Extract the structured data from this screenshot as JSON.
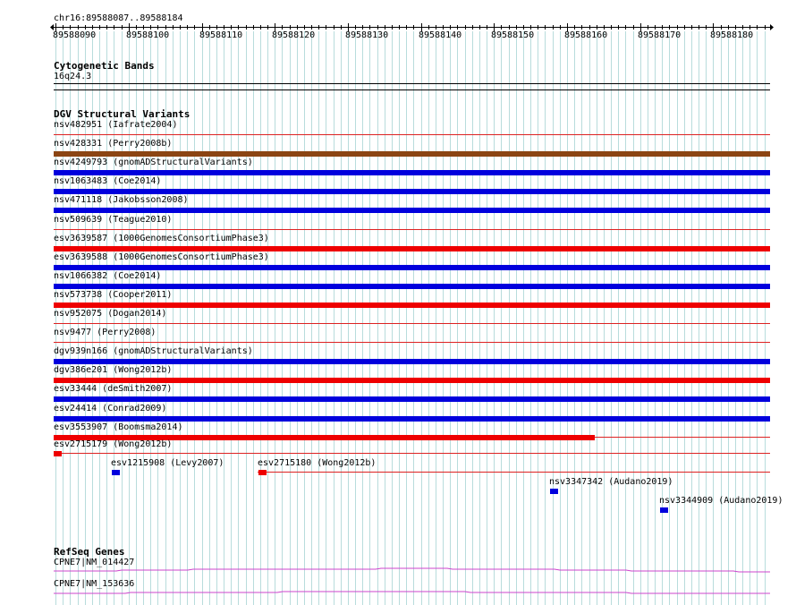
{
  "ruler": {
    "region": "chr16:89588087..89588184",
    "ticks": [
      "89588090",
      "89588100",
      "89588110",
      "89588120",
      "89588130",
      "89588140",
      "89588150",
      "89588160",
      "89588170",
      "89588180"
    ]
  },
  "cytoband": {
    "title": "Cytogenetic Bands",
    "band": "16q24.3"
  },
  "dgv": {
    "title": "DGV Structural Variants",
    "colors": {
      "brown": "#8b4513",
      "blue": "#0000dd",
      "red": "#ee0000",
      "line": "#dd2222"
    },
    "rows": [
      {
        "label": "nsv482951 (Iafrate2004)",
        "bar": "none"
      },
      {
        "label": "nsv428331 (Perry2008b)",
        "bar": "brown"
      },
      {
        "label": "nsv4249793 (gnomADStructuralVariants)",
        "bar": "blue"
      },
      {
        "label": "nsv1063483 (Coe2014)",
        "bar": "blue"
      },
      {
        "label": "nsv471118 (Jakobsson2008)",
        "bar": "blue"
      },
      {
        "label": "nsv509639 (Teague2010)",
        "bar": "none"
      },
      {
        "label": "esv3639587 (1000GenomesConsortiumPhase3)",
        "bar": "red"
      },
      {
        "label": "esv3639588 (1000GenomesConsortiumPhase3)",
        "bar": "blue"
      },
      {
        "label": "nsv1066382 (Coe2014)",
        "bar": "blue"
      },
      {
        "label": "nsv573738 (Cooper2011)",
        "bar": "red"
      },
      {
        "label": "nsv952075 (Dogan2014)",
        "bar": "none"
      },
      {
        "label": "nsv9477 (Perry2008)",
        "bar": "none"
      },
      {
        "label": "dgv939n166 (gnomADStructuralVariants)",
        "bar": "blue"
      },
      {
        "label": "dgv386e201 (Wong2012b)",
        "bar": "red"
      },
      {
        "label": "esv33444 (deSmith2007)",
        "bar": "blue"
      },
      {
        "label": "esv24414 (Conrad2009)",
        "bar": "blue"
      },
      {
        "label": "esv3553907 (Boomsma2014)",
        "bar": "red-partial"
      }
    ],
    "small_features": [
      {
        "label": "esv2715179 (Wong2012b)",
        "color": "red"
      },
      {
        "label": "esv1215908 (Levy2007)",
        "color": "blue"
      },
      {
        "label": "esv2715180 (Wong2012b)",
        "color": "red"
      },
      {
        "label": "nsv3347342 (Audano2019)",
        "color": "blue"
      },
      {
        "label": "nsv3344909 (Audano2019)",
        "color": "blue"
      }
    ]
  },
  "refseq": {
    "title": "RefSeq Genes",
    "color": "#cc44cc",
    "genes": [
      "CPNE7|NM_014427",
      "CPNE7|NM_153636"
    ]
  }
}
